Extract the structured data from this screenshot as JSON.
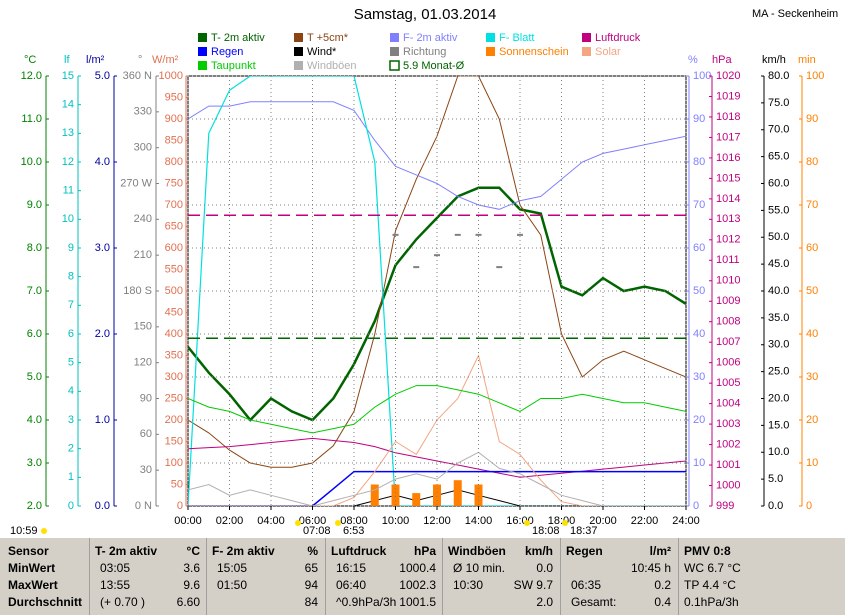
{
  "chart_data": {
    "type": "line",
    "title": "Samstag, 01.03.2014",
    "subtitle": "MA - Seckenheim",
    "xlim": [
      0,
      24
    ],
    "xticks": [
      {
        "value": 0,
        "label": "00:00"
      },
      {
        "value": 2,
        "label": "02:00"
      },
      {
        "value": 4,
        "label": "04:00"
      },
      {
        "value": 6,
        "label": "06:00"
      },
      {
        "value": 8,
        "label": "08:00"
      },
      {
        "value": 10,
        "label": "10:00"
      },
      {
        "value": 12,
        "label": "12:00"
      },
      {
        "value": 14,
        "label": "14:00"
      },
      {
        "value": 16,
        "label": "16:00"
      },
      {
        "value": 18,
        "label": "18:00"
      },
      {
        "value": 20,
        "label": "20:00"
      },
      {
        "value": 22,
        "label": "22:00"
      },
      {
        "value": 24,
        "label": "24:00"
      }
    ],
    "grid": true,
    "axes": {
      "c": {
        "unit": "°C",
        "color": "#008000",
        "lim": [
          2,
          12
        ],
        "ticks": [
          {
            "value": 2,
            "label": "2.0"
          },
          {
            "value": 3,
            "label": "3.0"
          },
          {
            "value": 4,
            "label": "4.0"
          },
          {
            "value": 5,
            "label": "5.0"
          },
          {
            "value": 6,
            "label": "6.0"
          },
          {
            "value": 7,
            "label": "7.0"
          },
          {
            "value": 8,
            "label": "8.0"
          },
          {
            "value": 9,
            "label": "9.0"
          },
          {
            "value": 10,
            "label": "10.0"
          },
          {
            "value": 11,
            "label": "11.0"
          },
          {
            "value": 12,
            "label": "12.0"
          }
        ]
      },
      "lf": {
        "unit": "lf",
        "color": "#00c0c0",
        "lim": [
          0,
          15
        ],
        "ticks": [
          0,
          1,
          2,
          3,
          4,
          5,
          6,
          7,
          8,
          9,
          10,
          11,
          12,
          13,
          14,
          15
        ]
      },
      "lm2": {
        "unit": "l/m²",
        "color": "#0000a0",
        "lim": [
          0,
          5
        ],
        "ticks": [
          {
            "value": 0,
            "label": "0.0"
          },
          {
            "value": 1,
            "label": "1.0"
          },
          {
            "value": 2,
            "label": "2.0"
          },
          {
            "value": 3,
            "label": "3.0"
          },
          {
            "value": 4,
            "label": "4.0"
          },
          {
            "value": 5,
            "label": "5.0"
          }
        ]
      },
      "dir": {
        "unit": "°",
        "color": "#808080",
        "lim": [
          0,
          360
        ],
        "ticks": [
          {
            "value": 0,
            "label": "0 N"
          },
          30,
          60,
          90,
          120,
          150,
          {
            "value": 180,
            "label": "180 S"
          },
          210,
          240,
          {
            "value": 270,
            "label": "270 W"
          },
          300,
          330,
          {
            "value": 360,
            "label": "360 N"
          }
        ]
      },
      "wm2": {
        "unit": "W/m²",
        "color": "#e07050",
        "lim": [
          0,
          1000
        ],
        "ticks": [
          0,
          50,
          100,
          150,
          200,
          250,
          300,
          350,
          400,
          450,
          500,
          550,
          600,
          650,
          700,
          750,
          800,
          850,
          900,
          950,
          1000
        ]
      },
      "pct": {
        "unit": "%",
        "color": "#8080ff",
        "lim": [
          0,
          100
        ],
        "ticks": [
          0,
          10,
          20,
          30,
          40,
          50,
          60,
          70,
          80,
          90,
          100
        ]
      },
      "hpa": {
        "unit": "hPa",
        "color": "#c0007f",
        "lim": [
          999,
          1020
        ],
        "ticks": [
          999,
          1000,
          1001,
          1002,
          1003,
          1004,
          1005,
          1006,
          1007,
          1008,
          1009,
          1010,
          1011,
          1012,
          1013,
          1014,
          1015,
          1016,
          1017,
          1018,
          1019,
          1020
        ]
      },
      "kmh": {
        "unit": "km/h",
        "color": "#000000",
        "lim": [
          0,
          80
        ],
        "ticks": [
          {
            "value": 0,
            "label": "0.0"
          },
          {
            "value": 5,
            "label": "5.0"
          },
          {
            "value": 10,
            "label": "10.0"
          },
          {
            "value": 15,
            "label": "15.0"
          },
          {
            "value": 20,
            "label": "20.0"
          },
          {
            "value": 25,
            "label": "25.0"
          },
          {
            "value": 30,
            "label": "30.0"
          },
          {
            "value": 35,
            "label": "35.0"
          },
          {
            "value": 40,
            "label": "40.0"
          },
          {
            "value": 45,
            "label": "45.0"
          },
          {
            "value": 50,
            "label": "50.0"
          },
          {
            "value": 55,
            "label": "55.0"
          },
          {
            "value": 60,
            "label": "60.0"
          },
          {
            "value": 65,
            "label": "65.0"
          },
          {
            "value": 70,
            "label": "70.0"
          },
          {
            "value": 75,
            "label": "75.0"
          },
          {
            "value": 80,
            "label": "80.0"
          }
        ]
      },
      "min": {
        "unit": "min",
        "color": "#ff8000",
        "lim": [
          0,
          100
        ],
        "ticks": [
          0,
          10,
          20,
          30,
          40,
          50,
          60,
          70,
          80,
          90,
          100
        ]
      }
    },
    "x": [
      0,
      1,
      2,
      3,
      4,
      5,
      6,
      7,
      8,
      9,
      10,
      11,
      12,
      13,
      14,
      15,
      16,
      17,
      18,
      19,
      20,
      21,
      22,
      23,
      24
    ],
    "series": [
      {
        "name": "T- 2m aktiv",
        "color": "#006400",
        "axis": "c",
        "style": "line",
        "width": 2.5,
        "values": [
          5.7,
          5.1,
          4.6,
          4.0,
          4.5,
          4.2,
          4.0,
          4.5,
          5.3,
          6.3,
          7.6,
          8.2,
          8.7,
          9.2,
          9.4,
          9.4,
          8.9,
          8.8,
          7.1,
          6.9,
          7.3,
          7.0,
          7.1,
          7.0,
          6.7
        ]
      },
      {
        "name": "T +5cm*",
        "color": "#8b4513",
        "axis": "c",
        "style": "line",
        "width": 1,
        "values": [
          4.0,
          3.7,
          3.3,
          3.0,
          2.9,
          2.9,
          3.0,
          3.4,
          4.2,
          6.0,
          8.4,
          9.6,
          10.6,
          12.0,
          12.0,
          11.0,
          9.0,
          8.3,
          6.0,
          5.0,
          5.4,
          5.6,
          5.4,
          5.2,
          5.0
        ]
      },
      {
        "name": "F- 2m aktiv",
        "color": "#8080ff",
        "axis": "pct",
        "style": "line",
        "width": 1,
        "values": [
          90,
          93,
          93,
          94,
          94,
          94,
          94,
          94,
          92,
          85,
          79,
          77,
          75,
          72,
          70,
          69,
          71,
          72,
          76,
          80,
          82,
          83,
          84,
          85,
          86
        ]
      },
      {
        "name": "F- Blatt",
        "color": "#00e0e0",
        "axis": "lf",
        "style": "line",
        "width": 1.2,
        "values": [
          0,
          13,
          14.5,
          15,
          15,
          15,
          15,
          15,
          15,
          12,
          0,
          0,
          0,
          0,
          0,
          0,
          0,
          0,
          0,
          0,
          0,
          0,
          0,
          0,
          0
        ]
      },
      {
        "name": "Luftdruck",
        "color": "#c0007f",
        "axis": "hpa",
        "style": "line",
        "width": 1,
        "values": [
          1001.8,
          1001.85,
          1001.9,
          1002.0,
          1002.1,
          1002.2,
          1002.3,
          1002.2,
          1002.1,
          1001.9,
          1001.6,
          1001.4,
          1001.2,
          1001.0,
          1000.8,
          1000.6,
          1000.4,
          1000.5,
          1000.6,
          1000.7,
          1000.8,
          1000.9,
          1001.0,
          1001.1,
          1001.2
        ]
      },
      {
        "name": "Regen",
        "color": "#0000ff",
        "axis": "lm2",
        "style": "line",
        "width": 1.5,
        "values": [
          0,
          0,
          0,
          0,
          0,
          0,
          0,
          0.2,
          0.4,
          0.4,
          0.4,
          0.4,
          0.4,
          0.4,
          0.4,
          0.4,
          0.4,
          0.4,
          0.4,
          0.4,
          0.4,
          0.4,
          0.4,
          0.4,
          0.4
        ]
      },
      {
        "name": "Wind*",
        "color": "#000000",
        "axis": "kmh",
        "style": "line",
        "width": 1,
        "values": [
          0,
          0,
          0,
          0,
          0,
          0,
          0,
          0,
          0,
          1,
          2,
          1,
          2,
          3,
          2,
          1,
          0,
          0,
          0,
          0,
          0,
          0,
          0,
          0,
          0
        ]
      },
      {
        "name": "Richtung",
        "color": "#808080",
        "axis": "dir",
        "style": "points",
        "values": [
          null,
          null,
          null,
          null,
          null,
          null,
          null,
          null,
          null,
          null,
          227,
          200,
          210,
          227,
          227,
          200,
          227,
          null,
          null,
          null,
          null,
          null,
          null,
          null,
          null
        ]
      },
      {
        "name": "Sonnenschein",
        "color": "#ff8000",
        "axis": "min",
        "style": "bars",
        "values": [
          0,
          0,
          0,
          0,
          0,
          0,
          0,
          0,
          0,
          5,
          5,
          3,
          5,
          6,
          5,
          0,
          0,
          0,
          0,
          0,
          0,
          0,
          0,
          0,
          0
        ]
      },
      {
        "name": "Solar",
        "color": "#f4a582",
        "axis": "wm2",
        "style": "line",
        "width": 1,
        "values": [
          0,
          0,
          0,
          0,
          0,
          0,
          0,
          0,
          20,
          80,
          150,
          120,
          200,
          250,
          350,
          150,
          120,
          60,
          10,
          0,
          0,
          0,
          0,
          0,
          0
        ]
      },
      {
        "name": "Taupunkt",
        "color": "#00cc00",
        "axis": "c",
        "style": "line",
        "width": 1,
        "values": [
          4.5,
          4.3,
          4.2,
          4.0,
          3.9,
          3.8,
          3.7,
          3.8,
          3.9,
          4.3,
          4.6,
          4.8,
          4.8,
          4.7,
          4.6,
          4.4,
          4.2,
          4.5,
          4.5,
          4.6,
          4.5,
          4.4,
          4.4,
          4.3,
          4.2
        ]
      },
      {
        "name": "Windböen",
        "color": "#b0b0b0",
        "axis": "kmh",
        "style": "line",
        "width": 1,
        "values": [
          3,
          4,
          2,
          3,
          2,
          1,
          0,
          1,
          2,
          3,
          5,
          6,
          5,
          8,
          10,
          7,
          6,
          4,
          2,
          1,
          0,
          0,
          0,
          0,
          0
        ]
      },
      {
        "name": "5.9 Monat-Ø",
        "color": "#006400",
        "style": "hlines",
        "lines": [
          {
            "axis": "c",
            "value": 5.9,
            "color": "#006400"
          },
          {
            "axis": "hpa",
            "value": 1013.2,
            "color": "#c0007f"
          }
        ]
      }
    ],
    "annotations": [
      "10:59",
      "07:08",
      "6:53",
      "18:08",
      "18:37"
    ]
  },
  "table": {
    "columns": [
      {
        "title": "Sensor"
      },
      {
        "title": "T- 2m aktiv",
        "unit": "°C"
      },
      {
        "title": "F- 2m aktiv",
        "unit": "%"
      },
      {
        "title": "Luftdruck",
        "unit": "hPa"
      },
      {
        "title": "Windböen",
        "unit": "km/h"
      },
      {
        "title": "Regen",
        "unit": "l/m²"
      },
      {
        "title": "PMV 0:8"
      }
    ],
    "rows": [
      {
        "label": "MinWert",
        "cells": [
          [
            "03:05",
            "3.6"
          ],
          [
            "15:05",
            "65"
          ],
          [
            "16:15",
            "1000.4"
          ],
          [
            "Ø 10 min.",
            "0.0"
          ],
          [
            "10:45 h"
          ],
          [
            "WC 6.7 °C"
          ]
        ]
      },
      {
        "label": "MaxWert",
        "cells": [
          [
            "13:55",
            "9.6"
          ],
          [
            "01:50",
            "94"
          ],
          [
            "06:40",
            "1002.3"
          ],
          [
            "10:30",
            "SW 9.7"
          ],
          [
            "06:35",
            "0.2"
          ],
          [
            "TP 4.4 °C"
          ]
        ]
      },
      {
        "label": "Durchschnitt",
        "cells": [
          [
            "(+ 0.70 )",
            "6.60"
          ],
          [
            "84"
          ],
          [
            "^0.9hPa/3h",
            "1001.5"
          ],
          [
            "2.0"
          ],
          [
            "Gesamt:",
            "0.4"
          ],
          [
            "0.1hPa/3h"
          ]
        ]
      }
    ]
  }
}
